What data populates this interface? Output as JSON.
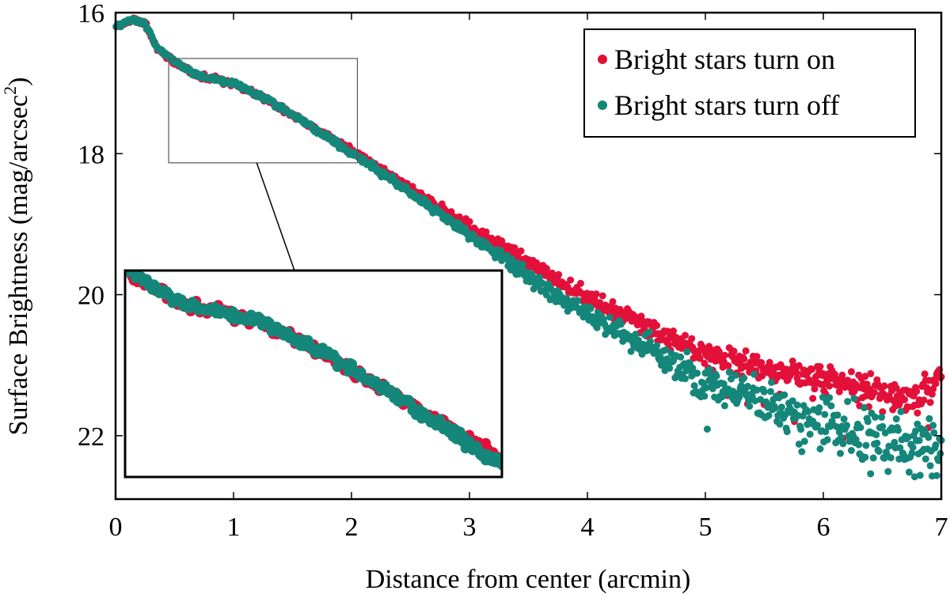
{
  "chart_data": {
    "type": "scatter",
    "title": "",
    "xlabel": "Distance from center (arcmin)",
    "ylabel_main": "Surface Brightness (mag/arcsec",
    "ylabel_sup": "2",
    "ylabel_close": ")",
    "xlim": [
      0,
      7
    ],
    "ylim": [
      16,
      22.9
    ],
    "y_inverted": true,
    "xticks": [
      0,
      1,
      2,
      3,
      4,
      5,
      6,
      7
    ],
    "yticks": [
      16,
      18,
      20,
      22
    ],
    "legend_position": "top-right",
    "inset": {
      "xlim": [
        0.45,
        2.05
      ],
      "ylim": [
        16.65,
        18.13
      ],
      "position": "lower-left"
    },
    "series": [
      {
        "name": "Bright stars turn on",
        "color": "#e3103a",
        "key": [
          [
            0.0,
            16.2
          ],
          [
            0.15,
            16.1
          ],
          [
            0.25,
            16.15
          ],
          [
            0.35,
            16.5
          ],
          [
            0.5,
            16.7
          ],
          [
            0.7,
            16.9
          ],
          [
            1.0,
            17.0
          ],
          [
            1.3,
            17.25
          ],
          [
            1.6,
            17.55
          ],
          [
            2.0,
            17.95
          ],
          [
            2.5,
            18.5
          ],
          [
            3.0,
            19.05
          ],
          [
            3.5,
            19.55
          ],
          [
            4.0,
            20.05
          ],
          [
            4.5,
            20.45
          ],
          [
            5.0,
            20.85
          ],
          [
            5.5,
            21.05
          ],
          [
            6.0,
            21.2
          ],
          [
            6.5,
            21.4
          ],
          [
            6.8,
            21.5
          ],
          [
            7.0,
            21.15
          ]
        ],
        "noise": [
          [
            0,
            0.02
          ],
          [
            2.5,
            0.03
          ],
          [
            3.5,
            0.06
          ],
          [
            5,
            0.1
          ],
          [
            7,
            0.14
          ]
        ]
      },
      {
        "name": "Bright stars turn off",
        "color": "#14877a",
        "key": [
          [
            0.0,
            16.2
          ],
          [
            0.15,
            16.1
          ],
          [
            0.25,
            16.15
          ],
          [
            0.35,
            16.5
          ],
          [
            0.5,
            16.7
          ],
          [
            0.7,
            16.9
          ],
          [
            1.0,
            17.0
          ],
          [
            1.3,
            17.25
          ],
          [
            1.6,
            17.55
          ],
          [
            2.0,
            17.98
          ],
          [
            2.5,
            18.55
          ],
          [
            3.0,
            19.15
          ],
          [
            3.5,
            19.75
          ],
          [
            4.0,
            20.3
          ],
          [
            4.5,
            20.75
          ],
          [
            5.0,
            21.25
          ],
          [
            5.5,
            21.55
          ],
          [
            6.0,
            21.8
          ],
          [
            6.5,
            22.05
          ],
          [
            7.0,
            22.2
          ]
        ],
        "noise": [
          [
            0,
            0.02
          ],
          [
            2.5,
            0.03
          ],
          [
            3.5,
            0.06
          ],
          [
            4.5,
            0.12
          ],
          [
            5.5,
            0.2
          ],
          [
            7,
            0.3
          ]
        ]
      }
    ]
  }
}
